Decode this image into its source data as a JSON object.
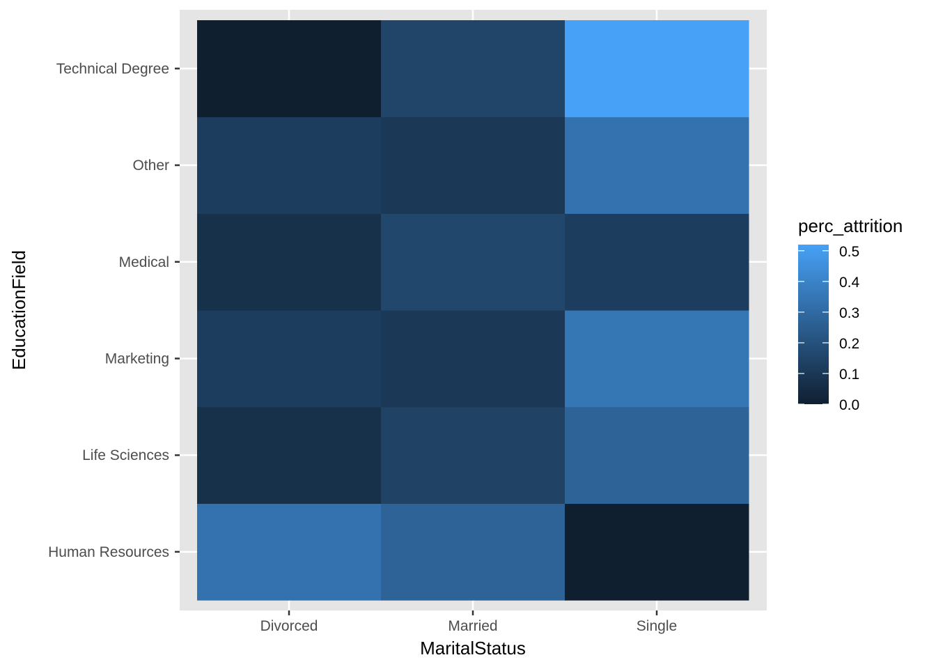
{
  "chart_data": {
    "type": "heatmap",
    "title": "",
    "xlabel": "MaritalStatus",
    "ylabel": "EducationField",
    "x_categories": [
      "Divorced",
      "Married",
      "Single"
    ],
    "y_categories": [
      "Human Resources",
      "Life Sciences",
      "Marketing",
      "Medical",
      "Other",
      "Technical Degree"
    ],
    "values": {
      "Technical Degree": [
        0.0,
        0.15,
        0.52
      ],
      "Other": [
        0.12,
        0.1,
        0.33
      ],
      "Medical": [
        0.07,
        0.16,
        0.12
      ],
      "Marketing": [
        0.12,
        0.1,
        0.35
      ],
      "Life Sciences": [
        0.07,
        0.14,
        0.27
      ],
      "Human Resources": [
        0.33,
        0.27,
        0.0
      ]
    },
    "legend": {
      "title": "perc_attrition",
      "ticks": [
        "0.0",
        "0.1",
        "0.2",
        "0.3",
        "0.4",
        "0.5"
      ],
      "tick_values": [
        0,
        0.1,
        0.2,
        0.3,
        0.4,
        0.5
      ],
      "range": [
        0,
        0.52
      ],
      "placement": "right"
    },
    "colors": {
      "low": "#101f30",
      "high": "#47a1f6",
      "panel": "#e5e5e5",
      "grid": "#ffffff"
    }
  }
}
